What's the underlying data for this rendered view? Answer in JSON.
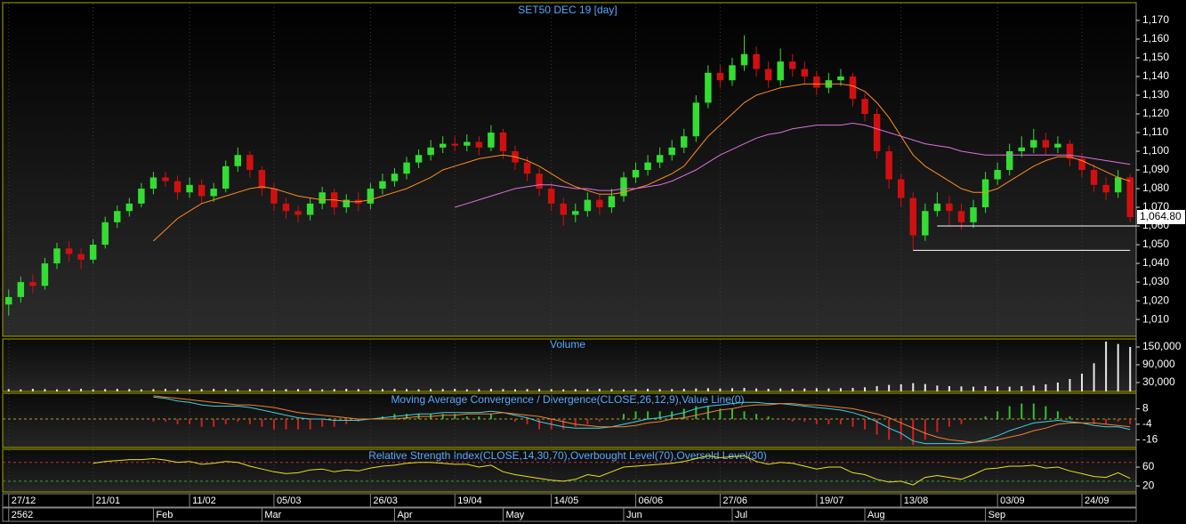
{
  "chart_data": [
    {
      "type": "candlestick",
      "title": "SET50 DEC 19   [day]",
      "xlim": [
        -0.5,
        93.5
      ],
      "xticks": [
        {
          "value": 0,
          "label": "27/12"
        },
        {
          "value": 7,
          "label": "21/01"
        },
        {
          "value": 15,
          "label": "11/02"
        },
        {
          "value": 22,
          "label": "05/03"
        },
        {
          "value": 30,
          "label": "26/03"
        },
        {
          "value": 37,
          "label": "19/04"
        },
        {
          "value": 45,
          "label": "14/05"
        },
        {
          "value": 52,
          "label": "06/06"
        },
        {
          "value": 59,
          "label": "27/06"
        },
        {
          "value": 67,
          "label": "19/07"
        },
        {
          "value": 74,
          "label": "13/08"
        },
        {
          "value": 82,
          "label": "03/09"
        },
        {
          "value": 89,
          "label": "24/09"
        }
      ],
      "xticks2": [
        {
          "value": 0,
          "label": "2562"
        },
        {
          "value": 12,
          "label": "Feb"
        },
        {
          "value": 21,
          "label": "Mar"
        },
        {
          "value": 32,
          "label": "Apr"
        },
        {
          "value": 41,
          "label": "May"
        },
        {
          "value": 51,
          "label": "Jun"
        },
        {
          "value": 60,
          "label": "Jul"
        },
        {
          "value": 71,
          "label": "Aug"
        },
        {
          "value": 81,
          "label": "Sep"
        }
      ],
      "ylim": [
        1001,
        1179.5
      ],
      "yticks": [
        {
          "value": 1010,
          "label": "1,010"
        },
        {
          "value": 1020,
          "label": "1,020"
        },
        {
          "value": 1030,
          "label": "1,030"
        },
        {
          "value": 1040,
          "label": "1,040"
        },
        {
          "value": 1050,
          "label": "1,050"
        },
        {
          "value": 1060,
          "label": "1,060"
        },
        {
          "value": 1070,
          "label": "1,070"
        },
        {
          "value": 1080,
          "label": "1,080"
        },
        {
          "value": 1090,
          "label": "1,090"
        },
        {
          "value": 1100,
          "label": "1,100"
        },
        {
          "value": 1110,
          "label": "1,110"
        },
        {
          "value": 1120,
          "label": "1,120"
        },
        {
          "value": 1130,
          "label": "1,130"
        },
        {
          "value": 1140,
          "label": "1,140"
        },
        {
          "value": 1150,
          "label": "1,150"
        },
        {
          "value": 1160,
          "label": "1,160"
        },
        {
          "value": 1170,
          "label": "1,170"
        }
      ],
      "up_color": "#33dd33",
      "down_color": "#d01010",
      "open": [
        1018,
        1022,
        1030,
        1028,
        1040,
        1048,
        1045,
        1042,
        1050,
        1062,
        1068,
        1072,
        1080,
        1086,
        1084,
        1078,
        1082,
        1076,
        1080,
        1092,
        1098,
        1090,
        1080,
        1072,
        1068,
        1066,
        1072,
        1078,
        1070,
        1074,
        1072,
        1080,
        1084,
        1088,
        1094,
        1098,
        1102,
        1104,
        1103,
        1105,
        1102,
        1110,
        1100,
        1094,
        1088,
        1080,
        1072,
        1066,
        1068,
        1074,
        1070,
        1076,
        1086,
        1090,
        1094,
        1098,
        1102,
        1108,
        1126,
        1142,
        1138,
        1146,
        1152,
        1144,
        1138,
        1148,
        1144,
        1140,
        1134,
        1138,
        1140,
        1128,
        1120,
        1100,
        1085,
        1075,
        1055,
        1068,
        1072,
        1068,
        1062,
        1070,
        1085,
        1090,
        1100,
        1102,
        1106,
        1102,
        1104,
        1096,
        1090,
        1082,
        1078,
        1086
      ],
      "high": [
        1026,
        1033,
        1034,
        1043,
        1051,
        1052,
        1048,
        1053,
        1065,
        1071,
        1075,
        1083,
        1089,
        1089,
        1087,
        1086,
        1085,
        1083,
        1095,
        1102,
        1100,
        1092,
        1083,
        1075,
        1071,
        1075,
        1081,
        1080,
        1077,
        1078,
        1083,
        1088,
        1091,
        1097,
        1101,
        1106,
        1108,
        1108,
        1109,
        1108,
        1114,
        1112,
        1103,
        1097,
        1091,
        1083,
        1075,
        1072,
        1078,
        1077,
        1080,
        1089,
        1094,
        1098,
        1102,
        1106,
        1112,
        1130,
        1146,
        1146,
        1150,
        1162,
        1156,
        1148,
        1155,
        1152,
        1148,
        1143,
        1142,
        1144,
        1142,
        1131,
        1123,
        1103,
        1088,
        1078,
        1072,
        1078,
        1076,
        1072,
        1074,
        1089,
        1094,
        1104,
        1108,
        1112,
        1110,
        1108,
        1106,
        1099,
        1093,
        1086,
        1090,
        1088
      ],
      "low": [
        1012,
        1019,
        1024,
        1026,
        1037,
        1041,
        1037,
        1040,
        1048,
        1059,
        1065,
        1070,
        1077,
        1081,
        1074,
        1075,
        1072,
        1073,
        1078,
        1089,
        1086,
        1076,
        1068,
        1064,
        1062,
        1063,
        1069,
        1066,
        1067,
        1068,
        1069,
        1077,
        1081,
        1085,
        1091,
        1095,
        1099,
        1100,
        1100,
        1098,
        1100,
        1096,
        1090,
        1084,
        1076,
        1068,
        1060,
        1062,
        1065,
        1066,
        1067,
        1073,
        1083,
        1087,
        1091,
        1095,
        1099,
        1105,
        1123,
        1134,
        1135,
        1143,
        1140,
        1134,
        1135,
        1140,
        1136,
        1130,
        1131,
        1135,
        1124,
        1116,
        1096,
        1080,
        1070,
        1047,
        1052,
        1065,
        1060,
        1058,
        1059,
        1067,
        1082,
        1087,
        1097,
        1099,
        1098,
        1099,
        1092,
        1086,
        1078,
        1074,
        1075,
        1062
      ],
      "close": [
        1022,
        1030,
        1028,
        1040,
        1048,
        1045,
        1042,
        1050,
        1062,
        1068,
        1072,
        1080,
        1086,
        1084,
        1078,
        1082,
        1076,
        1080,
        1092,
        1098,
        1090,
        1080,
        1072,
        1068,
        1066,
        1072,
        1078,
        1070,
        1074,
        1072,
        1080,
        1084,
        1088,
        1094,
        1098,
        1102,
        1104,
        1103,
        1105,
        1102,
        1110,
        1100,
        1094,
        1088,
        1080,
        1072,
        1066,
        1068,
        1074,
        1070,
        1076,
        1086,
        1090,
        1094,
        1098,
        1102,
        1108,
        1126,
        1142,
        1138,
        1146,
        1152,
        1144,
        1138,
        1148,
        1144,
        1140,
        1134,
        1138,
        1140,
        1128,
        1120,
        1100,
        1085,
        1075,
        1055,
        1068,
        1072,
        1068,
        1062,
        1070,
        1085,
        1090,
        1100,
        1102,
        1106,
        1102,
        1104,
        1096,
        1090,
        1082,
        1078,
        1086,
        1064.8
      ],
      "series": [
        {
          "color": "#ff8c1a",
          "values": [
            null,
            null,
            null,
            null,
            null,
            null,
            null,
            null,
            null,
            null,
            null,
            null,
            1052,
            1058,
            1064,
            1068,
            1072,
            1074,
            1076,
            1078,
            1080,
            1081,
            1080,
            1078,
            1076,
            1075,
            1074,
            1074,
            1073,
            1073,
            1074,
            1076,
            1078,
            1080,
            1083,
            1086,
            1090,
            1092,
            1094,
            1096,
            1097,
            1098,
            1097,
            1095,
            1092,
            1088,
            1084,
            1081,
            1079,
            1077,
            1077,
            1078,
            1080,
            1082,
            1085,
            1088,
            1092,
            1100,
            1108,
            1114,
            1120,
            1126,
            1130,
            1132,
            1134,
            1135,
            1136,
            1136,
            1136,
            1136,
            1135,
            1132,
            1126,
            1118,
            1108,
            1098,
            1092,
            1088,
            1084,
            1080,
            1078,
            1078,
            1080,
            1084,
            1088,
            1092,
            1095,
            1097,
            1097,
            1095,
            1092,
            1089,
            1086,
            1084
          ]
        },
        {
          "color": "#e070e0",
          "values": [
            null,
            null,
            null,
            null,
            null,
            null,
            null,
            null,
            null,
            null,
            null,
            null,
            null,
            null,
            null,
            null,
            null,
            null,
            null,
            null,
            null,
            null,
            null,
            null,
            null,
            null,
            null,
            null,
            null,
            null,
            null,
            null,
            null,
            null,
            null,
            null,
            null,
            1070,
            1072,
            1074,
            1076,
            1078,
            1080,
            1081,
            1082,
            1082,
            1081,
            1080,
            1080,
            1079,
            1079,
            1080,
            1080,
            1081,
            1082,
            1084,
            1087,
            1090,
            1094,
            1098,
            1101,
            1104,
            1107,
            1109,
            1110,
            1112,
            1113,
            1114,
            1114,
            1114,
            1115,
            1114,
            1112,
            1110,
            1108,
            1106,
            1104,
            1103,
            1102,
            1100,
            1099,
            1098,
            1098,
            1098,
            1098,
            1098,
            1098,
            1098,
            1098,
            1097,
            1096,
            1095,
            1094,
            1093
          ]
        }
      ],
      "levels": [
        {
          "value": 1060,
          "x": [
            77,
            93.5
          ],
          "color": "#ffffff"
        },
        {
          "value": 1047,
          "x": [
            75,
            93
          ],
          "color": "#ffffff"
        }
      ],
      "last_price": {
        "value": 1064.8,
        "label": "1,064.80"
      }
    },
    {
      "type": "bar",
      "title": "Volume",
      "color": "#e8e8e8",
      "ylim": [
        0,
        177000
      ],
      "yticks": [
        {
          "value": 30000,
          "label": "30,000"
        },
        {
          "value": 90000,
          "label": "90,000"
        },
        {
          "value": 150000,
          "label": "150,000"
        }
      ],
      "values": [
        8000,
        7000,
        9000,
        8000,
        7000,
        8000,
        9000,
        7000,
        8000,
        9000,
        8000,
        7000,
        8000,
        9000,
        8000,
        7000,
        8000,
        9000,
        8000,
        7000,
        8000,
        9000,
        7000,
        8000,
        8000,
        9000,
        7000,
        8000,
        9000,
        8000,
        7000,
        8000,
        9000,
        8000,
        7000,
        8000,
        8000,
        9000,
        7000,
        8000,
        9000,
        8000,
        7000,
        8000,
        9000,
        8000,
        7000,
        8000,
        8000,
        9000,
        8000,
        7000,
        8000,
        9000,
        8000,
        8000,
        9000,
        10000,
        11000,
        10000,
        11000,
        12000,
        10000,
        9000,
        10000,
        9000,
        10000,
        11000,
        10000,
        11000,
        12000,
        14000,
        18000,
        22000,
        24000,
        28000,
        25000,
        20000,
        18000,
        17000,
        16000,
        18000,
        17000,
        16000,
        18000,
        20000,
        24000,
        30000,
        42000,
        60000,
        95000,
        168000,
        160000,
        150000
      ]
    },
    {
      "type": "macd",
      "title": "Moving Average Convergence / Divergence(CLOSE,26,12,9),Value Line(0)",
      "ylim": [
        -22,
        20
      ],
      "yticks": [
        8,
        -4,
        -16
      ],
      "value_line": 0,
      "series": [
        {
          "color": "#40d0e0",
          "values": [
            null,
            null,
            null,
            null,
            null,
            null,
            null,
            null,
            null,
            null,
            null,
            null,
            17,
            16,
            14,
            13,
            11,
            10,
            10,
            10,
            9,
            7,
            5,
            3,
            1,
            0,
            0,
            -1,
            -1,
            -1,
            0,
            1,
            2,
            3,
            4,
            4,
            5,
            5,
            5,
            5,
            6,
            5,
            3,
            1,
            -2,
            -4,
            -6,
            -7,
            -7,
            -7,
            -6,
            -4,
            -2,
            0,
            1,
            3,
            5,
            8,
            10,
            11,
            12,
            13,
            13,
            12,
            12,
            11,
            10,
            9,
            8,
            7,
            5,
            2,
            -2,
            -7,
            -11,
            -17,
            -19,
            -19,
            -19,
            -19,
            -18,
            -16,
            -13,
            -9,
            -6,
            -3,
            -2,
            -1,
            -2,
            -3,
            -5,
            -6,
            -6,
            -8
          ]
        },
        {
          "color": "#f08030",
          "values": [
            null,
            null,
            null,
            null,
            null,
            null,
            null,
            null,
            null,
            null,
            null,
            null,
            18,
            17,
            16,
            15,
            14,
            13,
            12,
            11,
            11,
            10,
            9,
            7,
            5,
            4,
            3,
            2,
            1,
            0,
            0,
            0,
            0,
            1,
            2,
            2,
            3,
            3,
            4,
            4,
            4,
            5,
            4,
            3,
            2,
            0,
            -2,
            -4,
            -5,
            -6,
            -6,
            -6,
            -5,
            -3,
            -2,
            0,
            1,
            3,
            5,
            7,
            8,
            10,
            11,
            11,
            12,
            12,
            11,
            11,
            10,
            9,
            8,
            6,
            4,
            1,
            -3,
            -7,
            -11,
            -14,
            -16,
            -17,
            -18,
            -17,
            -16,
            -14,
            -12,
            -9,
            -7,
            -4,
            -3,
            -3,
            -3,
            -4,
            -5,
            -6
          ]
        }
      ],
      "up_color": "#30c030",
      "down_color": "#d02020"
    },
    {
      "type": "line",
      "title": "Relative Strength Index(CLOSE,14,30,70),Overbought Level(70),Oversold Level(30)",
      "ylim": [
        7,
        98
      ],
      "yticks": [
        60,
        20
      ],
      "color": "#e8e020",
      "levels": [
        {
          "value": 70,
          "color": "#c03040"
        },
        {
          "value": 30,
          "color": "#30a030"
        }
      ],
      "values": [
        null,
        null,
        null,
        null,
        null,
        null,
        null,
        68,
        72,
        74,
        76,
        76,
        78,
        75,
        70,
        72,
        66,
        68,
        72,
        70,
        62,
        56,
        50,
        46,
        48,
        54,
        56,
        50,
        54,
        52,
        58,
        62,
        64,
        68,
        70,
        70,
        68,
        66,
        66,
        60,
        64,
        50,
        44,
        40,
        36,
        32,
        30,
        34,
        44,
        40,
        50,
        60,
        62,
        64,
        66,
        68,
        72,
        78,
        84,
        80,
        82,
        84,
        72,
        66,
        70,
        68,
        62,
        56,
        60,
        60,
        48,
        44,
        34,
        28,
        30,
        22,
        38,
        42,
        38,
        34,
        44,
        56,
        58,
        62,
        62,
        64,
        58,
        60,
        52,
        46,
        40,
        38,
        48,
        36
      ]
    }
  ]
}
